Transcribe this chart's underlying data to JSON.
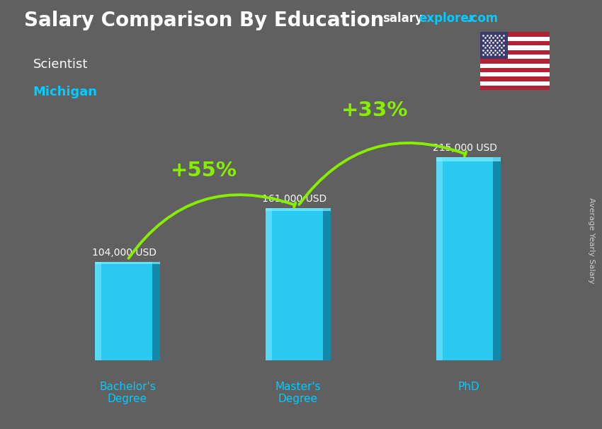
{
  "title": "Salary Comparison By Education",
  "subtitle": "Scientist",
  "location": "Michigan",
  "categories": [
    "Bachelor's\nDegree",
    "Master's\nDegree",
    "PhD"
  ],
  "values": [
    104000,
    161000,
    215000
  ],
  "value_labels": [
    "104,000 USD",
    "161,000 USD",
    "215,000 USD"
  ],
  "bar_color_main": "#29c9f0",
  "bar_color_light": "#5ddcf8",
  "bar_color_dark": "#1aa0c8",
  "bar_color_side": "#0e7fa0",
  "pct_labels": [
    "+55%",
    "+33%"
  ],
  "pct_color": "#88ee00",
  "title_color": "#ffffff",
  "subtitle_color": "#ffffff",
  "location_color": "#00ccff",
  "xlabel_color": "#00ccff",
  "bg_color": "#606060",
  "ylabel": "Average Yearly Salary",
  "ylim_max": 250000,
  "bar_width": 0.38,
  "x_positions": [
    0.5,
    1.5,
    2.5
  ],
  "xlim": [
    0,
    3.0
  ],
  "flag_stripes": [
    "#B22234",
    "#FFFFFF",
    "#B22234",
    "#FFFFFF",
    "#B22234",
    "#FFFFFF",
    "#B22234",
    "#FFFFFF",
    "#B22234",
    "#FFFFFF",
    "#B22234",
    "#FFFFFF",
    "#B22234"
  ],
  "flag_canton": "#3C3B6E"
}
